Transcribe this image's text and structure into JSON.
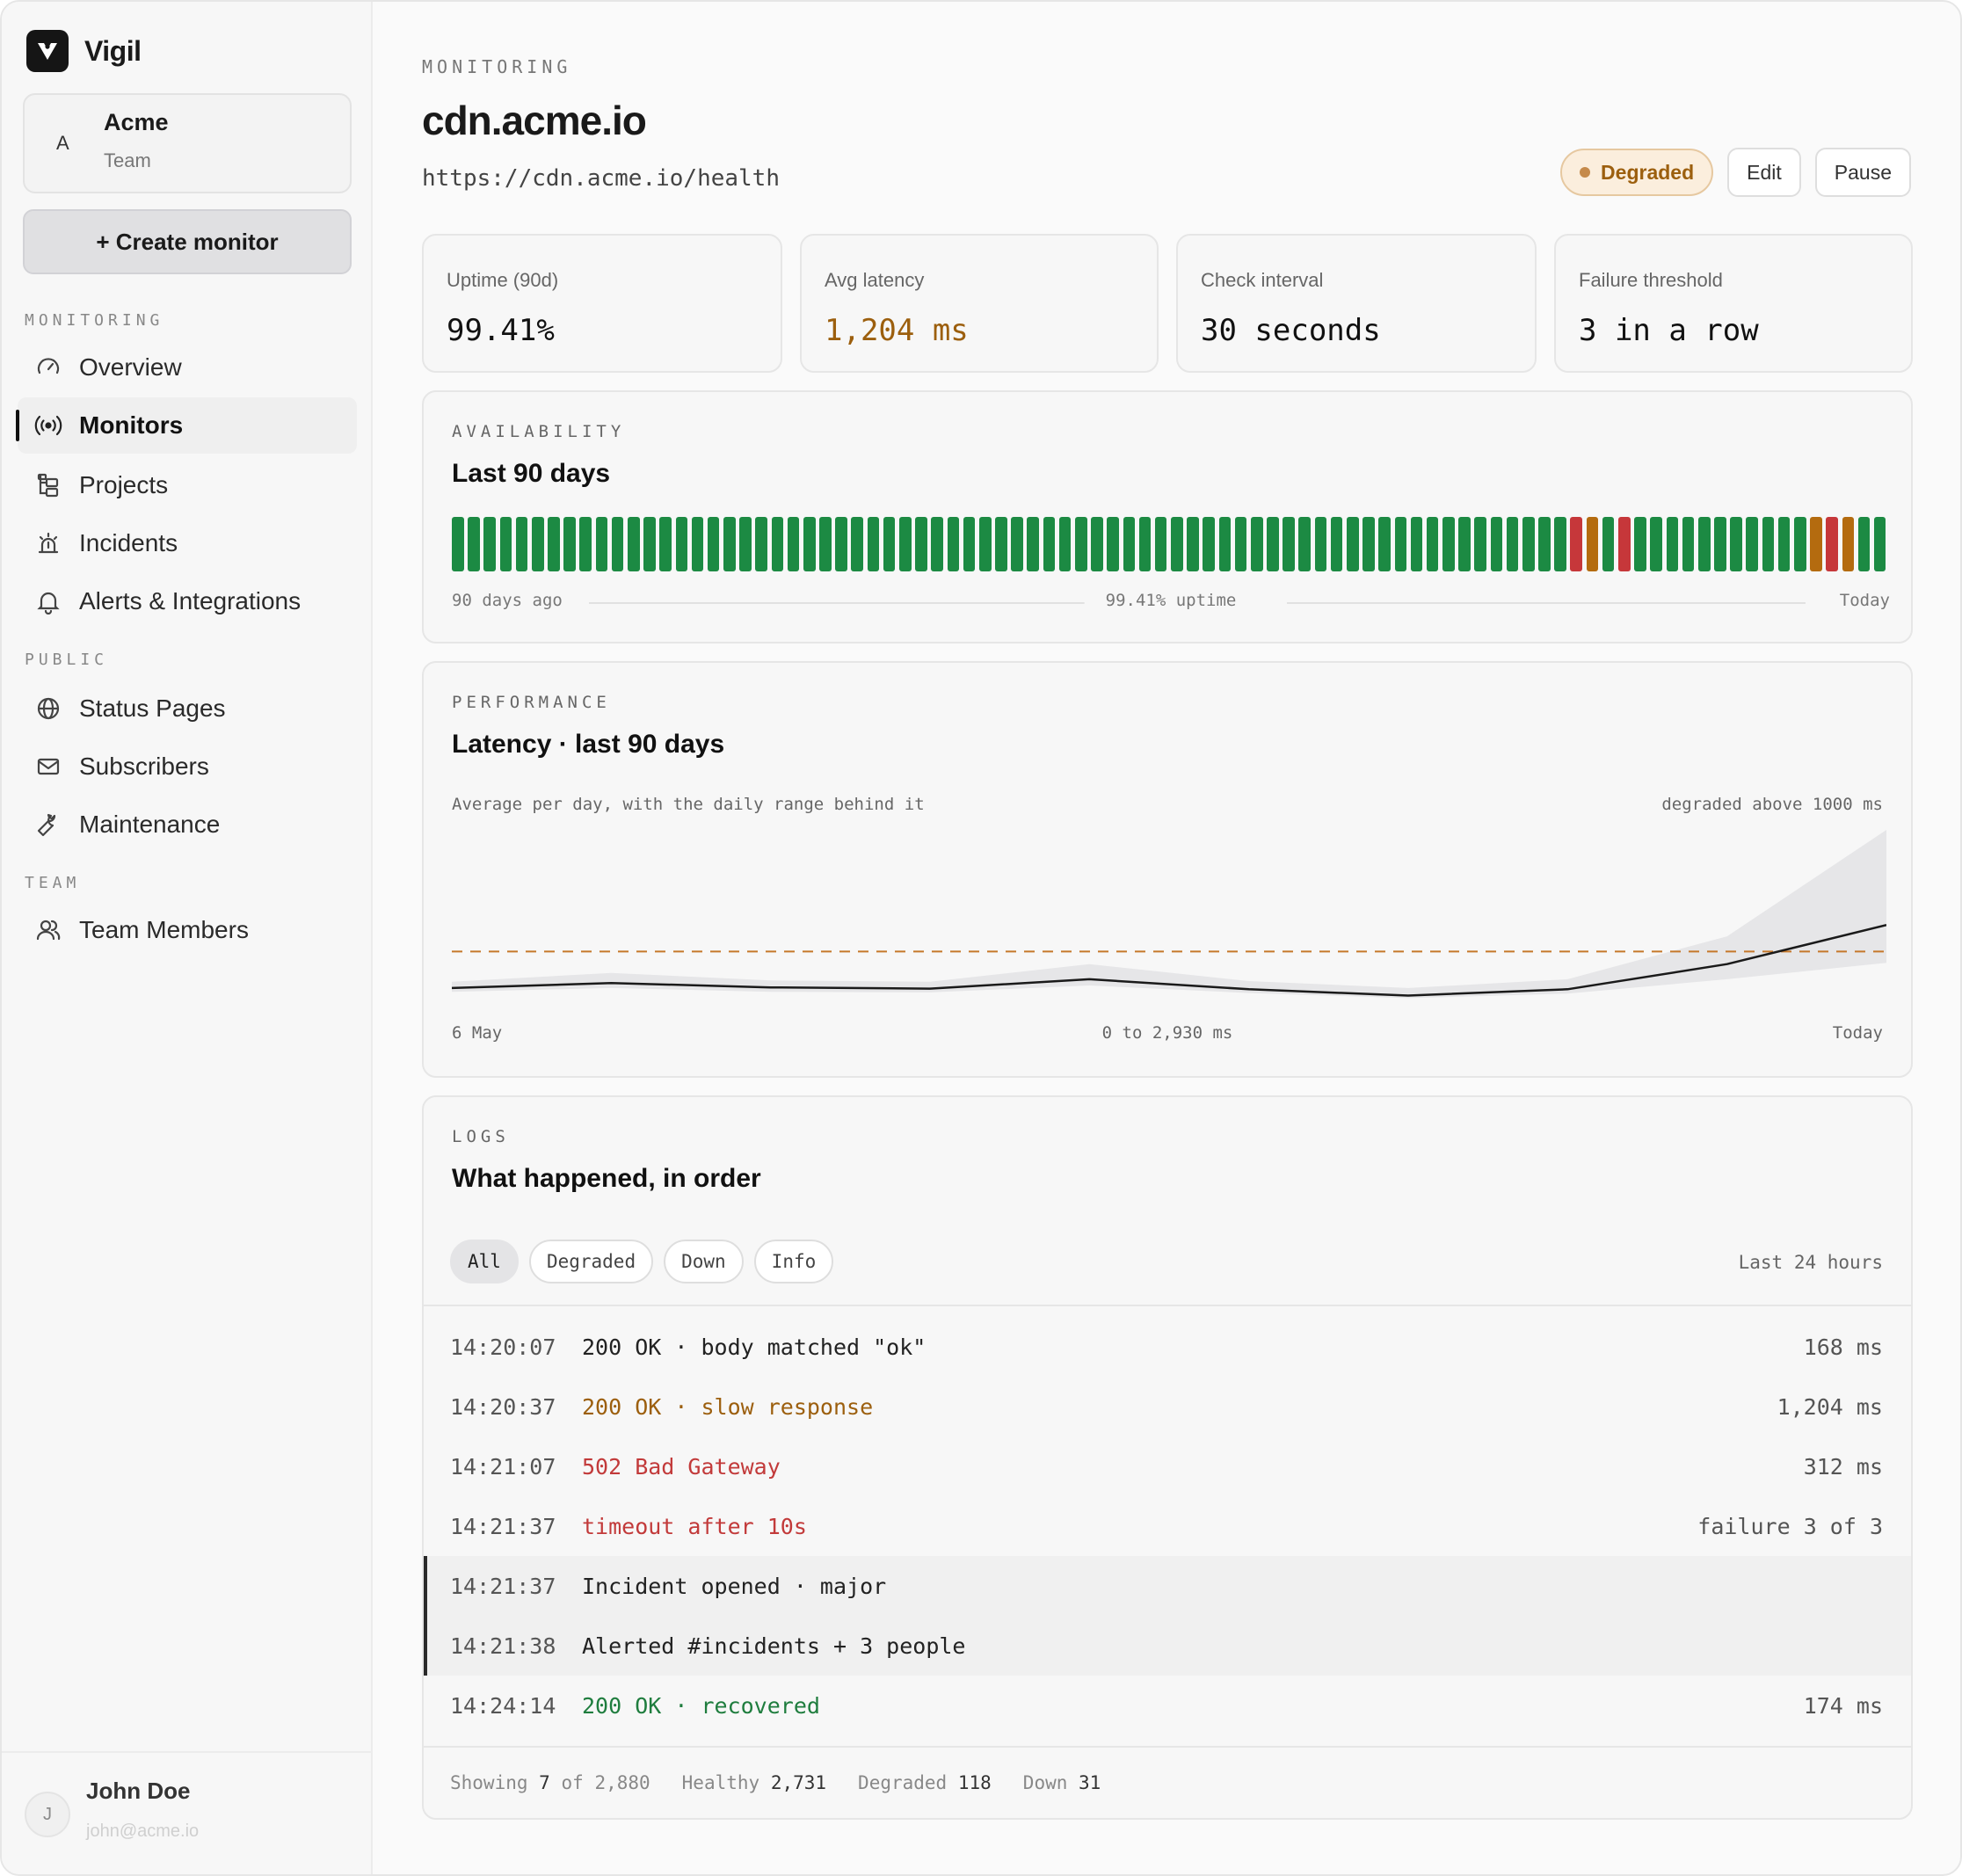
{
  "brand": {
    "name": "Vigil"
  },
  "team": {
    "avatar_letter": "A",
    "name": "Acme",
    "type": "Team"
  },
  "sidebar": {
    "create_label": "+ Create monitor",
    "sections": [
      {
        "title": "MONITORING"
      },
      {
        "title": "PUBLIC"
      },
      {
        "title": "TEAM"
      }
    ],
    "items": [
      {
        "label": "Overview",
        "icon": "gauge-icon"
      },
      {
        "label": "Monitors",
        "icon": "broadcast-icon",
        "active": true
      },
      {
        "label": "Projects",
        "icon": "folder-tree-icon"
      },
      {
        "label": "Incidents",
        "icon": "siren-icon"
      },
      {
        "label": "Alerts & Integrations",
        "icon": "bell-icon"
      },
      {
        "label": "Status Pages",
        "icon": "globe-icon"
      },
      {
        "label": "Subscribers",
        "icon": "mail-icon"
      },
      {
        "label": "Maintenance",
        "icon": "wrench-icon"
      },
      {
        "label": "Team Members",
        "icon": "users-icon"
      }
    ]
  },
  "user": {
    "avatar_letter": "J",
    "name": "John Doe",
    "email": "john@acme.io"
  },
  "header": {
    "eyebrow": "MONITORING",
    "title": "cdn.acme.io",
    "url": "https://cdn.acme.io/health",
    "status": "Degraded",
    "edit_label": "Edit",
    "pause_label": "Pause"
  },
  "stats": [
    {
      "label": "Uptime (90d)",
      "value": "99.41%"
    },
    {
      "label": "Avg latency",
      "value": "1,204 ms"
    },
    {
      "label": "Check interval",
      "value": "30 seconds"
    },
    {
      "label": "Failure threshold",
      "value": "3 in a row"
    }
  ],
  "availability": {
    "eyebrow": "AVAILABILITY",
    "title": "Last 90 days",
    "start_label": "90 days ago",
    "center_label": "99.41% uptime",
    "end_label": "Today",
    "colors": {
      "up": "#1c8a43",
      "degraded": "#b46b0f",
      "down": "#c6373a"
    },
    "days": [
      "up",
      "up",
      "up",
      "up",
      "up",
      "up",
      "up",
      "up",
      "up",
      "up",
      "up",
      "up",
      "up",
      "up",
      "up",
      "up",
      "up",
      "up",
      "up",
      "up",
      "up",
      "up",
      "up",
      "up",
      "up",
      "up",
      "up",
      "up",
      "up",
      "up",
      "up",
      "up",
      "up",
      "up",
      "up",
      "up",
      "up",
      "up",
      "up",
      "up",
      "up",
      "up",
      "up",
      "up",
      "up",
      "up",
      "up",
      "up",
      "up",
      "up",
      "up",
      "up",
      "up",
      "up",
      "up",
      "up",
      "up",
      "up",
      "up",
      "up",
      "up",
      "up",
      "up",
      "up",
      "up",
      "up",
      "up",
      "up",
      "up",
      "up",
      "down",
      "degraded",
      "up",
      "down",
      "up",
      "up",
      "up",
      "up",
      "up",
      "up",
      "up",
      "up",
      "up",
      "up",
      "up",
      "degraded",
      "down",
      "degraded",
      "up",
      "up"
    ]
  },
  "performance": {
    "eyebrow": "PERFORMANCE",
    "title": "Latency · last 90 days",
    "note": "Average per day, with the daily range behind it",
    "threshold_note": "degraded above 1000 ms",
    "start_label": "6 May",
    "range_label": "0 to 2,930 ms",
    "end_label": "Today"
  },
  "chart_data": {
    "type": "area",
    "x": [
      0,
      10,
      20,
      30,
      40,
      50,
      60,
      70,
      80,
      90
    ],
    "series": [
      {
        "values": [
          420,
          500,
          430,
          410,
          560,
          400,
          300,
          400,
          800,
          1420
        ]
      }
    ],
    "range_low": [
      360,
      420,
      360,
      350,
      460,
      340,
      260,
      330,
      560,
      820
    ],
    "range_high": [
      520,
      660,
      540,
      520,
      800,
      530,
      420,
      560,
      1240,
      2930
    ],
    "threshold": 1000,
    "ylim": [
      0,
      2930
    ],
    "xlabel": "",
    "ylabel": "",
    "colors": {
      "line": "#1a1a1a",
      "range": "#e6e6e8",
      "threshold": "#c5782a"
    }
  },
  "logs": {
    "eyebrow": "LOGS",
    "title": "What happened, in order",
    "filters": [
      "All",
      "Degraded",
      "Down",
      "Info"
    ],
    "range": "Last 24 hours",
    "rows": [
      {
        "time": "14:20:07",
        "message": "200 OK · body matched \"ok\"",
        "value": "168 ms",
        "tone": ""
      },
      {
        "time": "14:20:37",
        "message": "200 OK · slow response",
        "value": "1,204 ms",
        "tone": "warn"
      },
      {
        "time": "14:21:07",
        "message": "502 Bad Gateway",
        "value": "312 ms",
        "tone": "err"
      },
      {
        "time": "14:21:37",
        "message": "timeout after 10s",
        "value": "failure 3 of 3",
        "tone": "err"
      },
      {
        "time": "14:21:37",
        "message": "Incident opened · major",
        "value": "",
        "tone": "hl"
      },
      {
        "time": "14:21:38",
        "message": "Alerted #incidents + 3 people",
        "value": "",
        "tone": "hl"
      },
      {
        "time": "14:24:14",
        "message": "200 OK · recovered",
        "value": "174 ms",
        "tone": "ok"
      }
    ],
    "footer": {
      "showing_label": "Showing",
      "showing": "7",
      "of_label": "of",
      "total": "2,880",
      "healthy_label": "Healthy",
      "healthy": "2,731",
      "degraded_label": "Degraded",
      "degraded": "118",
      "down_label": "Down",
      "down": "31"
    }
  }
}
